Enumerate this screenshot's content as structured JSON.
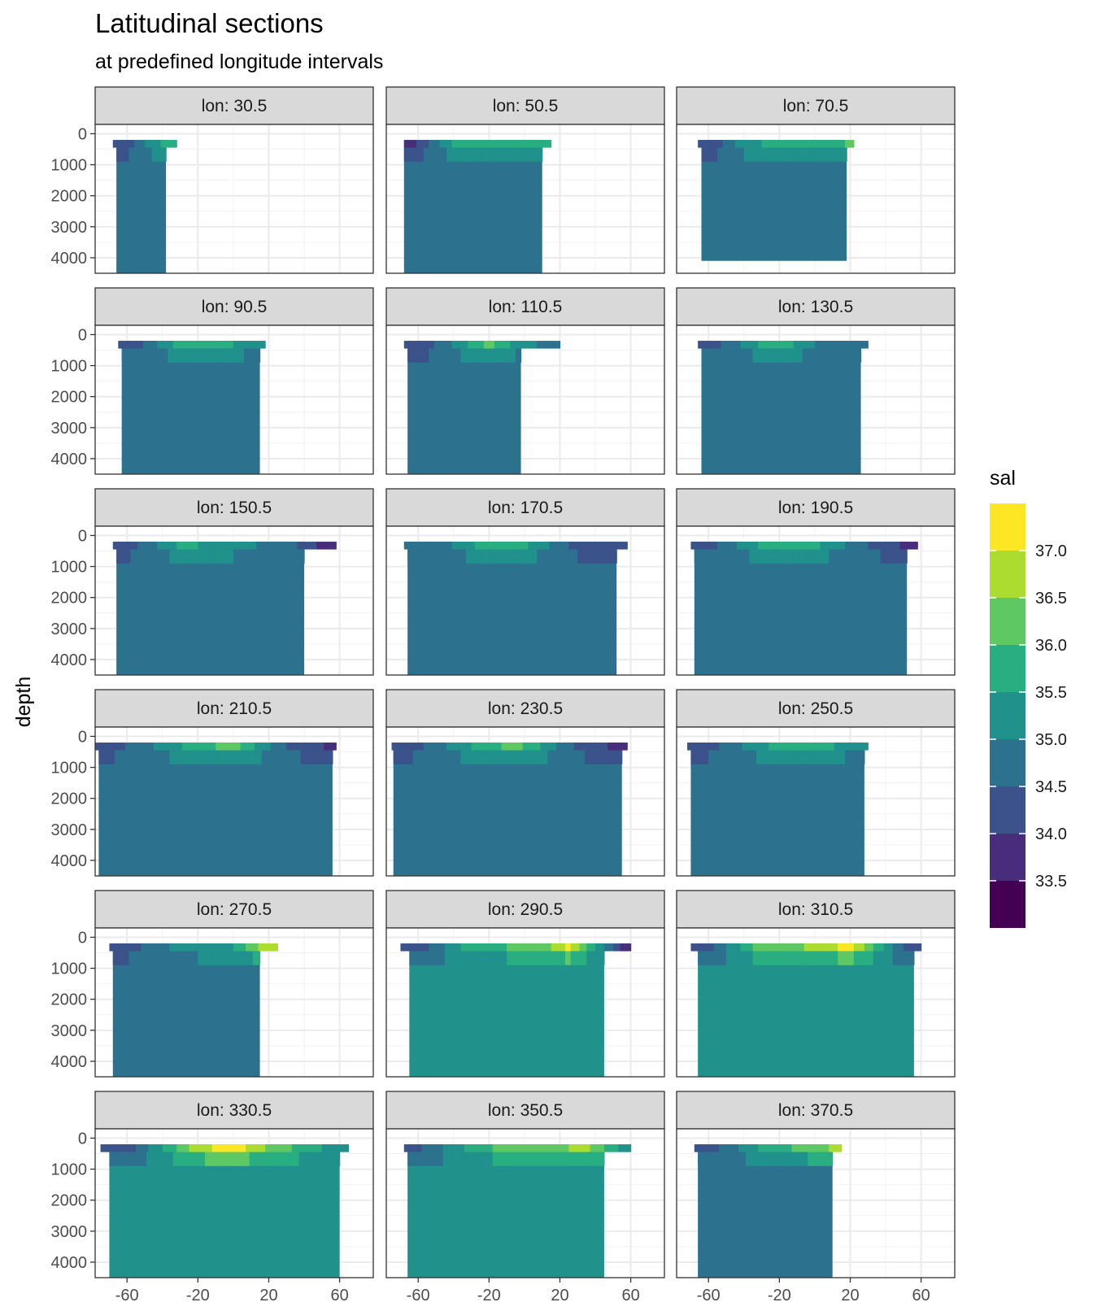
{
  "chart_data": {
    "type": "heatmap",
    "title": "Latitudinal sections",
    "subtitle": "at predefined longitude intervals",
    "xlabel": "",
    "ylabel": "depth",
    "facet_label_prefix": "lon: ",
    "facets": [
      "30.5",
      "50.5",
      "70.5",
      "90.5",
      "110.5",
      "130.5",
      "150.5",
      "170.5",
      "190.5",
      "210.5",
      "230.5",
      "250.5",
      "270.5",
      "290.5",
      "310.5",
      "330.5",
      "350.5",
      "370.5"
    ],
    "x_ticks": [
      "-60",
      "-20",
      "20",
      "60"
    ],
    "x_tick_values": [
      -60,
      -20,
      20,
      60
    ],
    "xlim": [
      -78,
      79
    ],
    "y_ticks": [
      "0",
      "1000",
      "2000",
      "3000",
      "4000"
    ],
    "y_tick_values": [
      0,
      1000,
      2000,
      3000,
      4000
    ],
    "ylim": [
      4500,
      -300
    ],
    "y_reversed": true,
    "grid": true,
    "legend": {
      "title": "sal",
      "position": "right",
      "breaks": [
        "37.0",
        "36.5",
        "36.0",
        "35.5",
        "35.0",
        "34.5",
        "34.0",
        "33.5"
      ],
      "bins": [
        {
          "from": 37.0,
          "to": 37.5,
          "color": "#fde725"
        },
        {
          "from": 36.5,
          "to": 37.0,
          "color": "#addc30"
        },
        {
          "from": 36.0,
          "to": 36.5,
          "color": "#5ec962"
        },
        {
          "from": 35.5,
          "to": 36.0,
          "color": "#28ae80"
        },
        {
          "from": 35.0,
          "to": 35.5,
          "color": "#21918c"
        },
        {
          "from": 34.5,
          "to": 35.0,
          "color": "#2c728e"
        },
        {
          "from": 34.0,
          "to": 34.5,
          "color": "#3b528b"
        },
        {
          "from": 33.5,
          "to": 34.0,
          "color": "#472d7b"
        },
        {
          "from": 33.0,
          "to": 33.5,
          "color": "#440154"
        }
      ]
    },
    "sections": [
      {
        "lon": "30.5",
        "lat_range": [
          -68,
          -32
        ],
        "deep_lat_range": [
          -66,
          -38
        ],
        "max_depth": 4500,
        "deep_salinity": 34.7,
        "surface": [
          {
            "lat": -60,
            "sal": 34.2
          },
          {
            "lat": -45,
            "sal": 35.4
          },
          {
            "lat": -36,
            "sal": 35.6
          }
        ]
      },
      {
        "lon": "50.5",
        "lat_range": [
          -68,
          15
        ],
        "deep_lat_range": [
          -68,
          10
        ],
        "max_depth": 4500,
        "deep_salinity": 34.7,
        "surface": [
          {
            "lat": -62,
            "sal": 33.9
          },
          {
            "lat": -40,
            "sal": 35.6
          },
          {
            "lat": -20,
            "sal": 35.8
          },
          {
            "lat": 0,
            "sal": 35.6
          },
          {
            "lat": 12,
            "sal": 35.7
          }
        ]
      },
      {
        "lon": "70.5",
        "lat_range": [
          -66,
          22
        ],
        "deep_lat_range": [
          -64,
          18
        ],
        "max_depth": 4100,
        "deep_salinity": 34.7,
        "surface": [
          {
            "lat": -60,
            "sal": 34.0
          },
          {
            "lat": -40,
            "sal": 35.3
          },
          {
            "lat": -15,
            "sal": 35.8
          },
          {
            "lat": 10,
            "sal": 35.5
          },
          {
            "lat": 20,
            "sal": 36.2
          }
        ]
      },
      {
        "lon": "90.5",
        "lat_range": [
          -65,
          18
        ],
        "deep_lat_range": [
          -63,
          15
        ],
        "max_depth": 4500,
        "deep_salinity": 34.7,
        "surface": [
          {
            "lat": -55,
            "sal": 34.3
          },
          {
            "lat": -30,
            "sal": 35.7
          },
          {
            "lat": -15,
            "sal": 36.0
          },
          {
            "lat": 0,
            "sal": 35.5
          },
          {
            "lat": 15,
            "sal": 35.0
          }
        ]
      },
      {
        "lon": "110.5",
        "lat_range": [
          -68,
          20
        ],
        "deep_lat_range": [
          -66,
          -2
        ],
        "max_depth": 4500,
        "deep_salinity": 34.7,
        "surface": [
          {
            "lat": -60,
            "sal": 34.0
          },
          {
            "lat": -30,
            "sal": 35.6
          },
          {
            "lat": -20,
            "sal": 36.2
          },
          {
            "lat": -5,
            "sal": 35.3
          },
          {
            "lat": 15,
            "sal": 34.8
          }
        ]
      },
      {
        "lon": "130.5",
        "lat_range": [
          -66,
          30
        ],
        "deep_lat_range": [
          -64,
          26
        ],
        "max_depth": 4500,
        "deep_salinity": 34.7,
        "surface": [
          {
            "lat": -55,
            "sal": 34.4
          },
          {
            "lat": -33,
            "sal": 35.4
          },
          {
            "lat": -25,
            "sal": 36.0
          },
          {
            "lat": 0,
            "sal": 35.0
          },
          {
            "lat": 25,
            "sal": 34.8
          }
        ]
      },
      {
        "lon": "150.5",
        "lat_range": [
          -68,
          58
        ],
        "deep_lat_range": [
          -66,
          40
        ],
        "max_depth": 4500,
        "deep_salinity": 34.7,
        "surface": [
          {
            "lat": -60,
            "sal": 34.2
          },
          {
            "lat": -30,
            "sal": 35.6
          },
          {
            "lat": 0,
            "sal": 35.3
          },
          {
            "lat": 40,
            "sal": 34.4
          },
          {
            "lat": 56,
            "sal": 33.5
          }
        ]
      },
      {
        "lon": "170.5",
        "lat_range": [
          -68,
          58
        ],
        "deep_lat_range": [
          -66,
          52
        ],
        "max_depth": 4500,
        "deep_salinity": 34.7,
        "surface": [
          {
            "lat": -55,
            "sal": 34.5
          },
          {
            "lat": -25,
            "sal": 35.6
          },
          {
            "lat": -5,
            "sal": 35.8
          },
          {
            "lat": 30,
            "sal": 34.3
          },
          {
            "lat": 55,
            "sal": 34.0
          }
        ]
      },
      {
        "lon": "190.5",
        "lat_range": [
          -70,
          58
        ],
        "deep_lat_range": [
          -68,
          52
        ],
        "max_depth": 4500,
        "deep_salinity": 34.7,
        "surface": [
          {
            "lat": -60,
            "sal": 34.3
          },
          {
            "lat": -30,
            "sal": 35.6
          },
          {
            "lat": -5,
            "sal": 35.8
          },
          {
            "lat": 30,
            "sal": 34.5
          },
          {
            "lat": 55,
            "sal": 33.8
          }
        ]
      },
      {
        "lon": "210.5",
        "lat_range": [
          -78,
          58
        ],
        "deep_lat_range": [
          -76,
          56
        ],
        "max_depth": 4500,
        "deep_salinity": 34.7,
        "surface": [
          {
            "lat": -70,
            "sal": 34.2
          },
          {
            "lat": -20,
            "sal": 35.8
          },
          {
            "lat": 0,
            "sal": 36.2
          },
          {
            "lat": 30,
            "sal": 34.5
          },
          {
            "lat": 55,
            "sal": 33.9
          }
        ]
      },
      {
        "lon": "230.5",
        "lat_range": [
          -75,
          58
        ],
        "deep_lat_range": [
          -74,
          55
        ],
        "max_depth": 4500,
        "deep_salinity": 34.7,
        "surface": [
          {
            "lat": -68,
            "sal": 34.1
          },
          {
            "lat": -25,
            "sal": 35.7
          },
          {
            "lat": -5,
            "sal": 36.2
          },
          {
            "lat": 30,
            "sal": 34.4
          },
          {
            "lat": 55,
            "sal": 33.8
          }
        ]
      },
      {
        "lon": "250.5",
        "lat_range": [
          -72,
          30
        ],
        "deep_lat_range": [
          -70,
          28
        ],
        "max_depth": 4500,
        "deep_salinity": 34.7,
        "surface": [
          {
            "lat": -68,
            "sal": 34.0
          },
          {
            "lat": -30,
            "sal": 35.4
          },
          {
            "lat": -5,
            "sal": 36.0
          },
          {
            "lat": 20,
            "sal": 35.2
          }
        ]
      },
      {
        "lon": "270.5",
        "lat_range": [
          -70,
          25
        ],
        "deep_lat_range": [
          -68,
          15
        ],
        "max_depth": 4500,
        "deep_salinity": 34.7,
        "surface": [
          {
            "lat": -65,
            "sal": 34.1
          },
          {
            "lat": -30,
            "sal": 35.2
          },
          {
            "lat": 0,
            "sal": 35.5
          },
          {
            "lat": 20,
            "sal": 36.9
          }
        ]
      },
      {
        "lon": "290.5",
        "lat_range": [
          -70,
          60
        ],
        "deep_lat_range": [
          -65,
          45
        ],
        "max_depth": 4500,
        "deep_salinity": 35.0,
        "surface": [
          {
            "lat": -60,
            "sal": 34.2
          },
          {
            "lat": -30,
            "sal": 35.8
          },
          {
            "lat": 10,
            "sal": 36.2
          },
          {
            "lat": 25,
            "sal": 37.1
          },
          {
            "lat": 58,
            "sal": 33.6
          }
        ]
      },
      {
        "lon": "310.5",
        "lat_range": [
          -70,
          60
        ],
        "deep_lat_range": [
          -66,
          56
        ],
        "max_depth": 4500,
        "deep_salinity": 35.0,
        "surface": [
          {
            "lat": -60,
            "sal": 34.3
          },
          {
            "lat": -35,
            "sal": 36.0
          },
          {
            "lat": 0,
            "sal": 36.6
          },
          {
            "lat": 20,
            "sal": 37.2
          },
          {
            "lat": 55,
            "sal": 34.0
          }
        ]
      },
      {
        "lon": "330.5",
        "lat_range": [
          -75,
          65
        ],
        "deep_lat_range": [
          -70,
          60
        ],
        "max_depth": 4500,
        "deep_salinity": 35.1,
        "surface": [
          {
            "lat": -60,
            "sal": 34.2
          },
          {
            "lat": -20,
            "sal": 36.8
          },
          {
            "lat": 0,
            "sal": 37.3
          },
          {
            "lat": 20,
            "sal": 36.4
          },
          {
            "lat": 60,
            "sal": 35.2
          }
        ]
      },
      {
        "lon": "350.5",
        "lat_range": [
          -68,
          60
        ],
        "deep_lat_range": [
          -66,
          45
        ],
        "max_depth": 4500,
        "deep_salinity": 35.0,
        "surface": [
          {
            "lat": -60,
            "sal": 34.4
          },
          {
            "lat": -25,
            "sal": 35.9
          },
          {
            "lat": 5,
            "sal": 36.3
          },
          {
            "lat": 35,
            "sal": 36.6
          },
          {
            "lat": 55,
            "sal": 35.4
          }
        ]
      },
      {
        "lon": "370.5",
        "lat_range": [
          -68,
          15
        ],
        "deep_lat_range": [
          -66,
          10
        ],
        "max_depth": 4500,
        "deep_salinity": 34.8,
        "surface": [
          {
            "lat": -60,
            "sal": 34.2
          },
          {
            "lat": -30,
            "sal": 35.6
          },
          {
            "lat": 0,
            "sal": 36.3
          },
          {
            "lat": 12,
            "sal": 36.6
          }
        ]
      }
    ]
  }
}
